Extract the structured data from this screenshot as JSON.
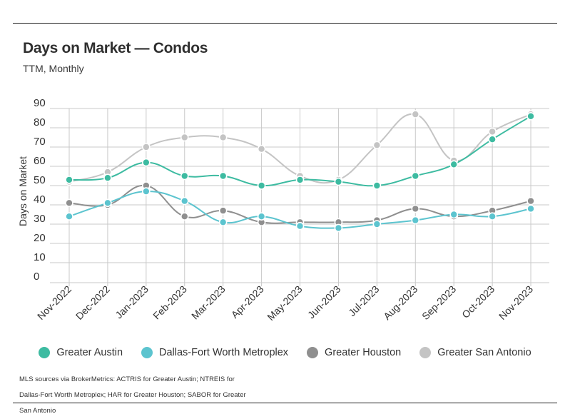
{
  "title": "Days on Market — Condos",
  "subtitle": "TTM, Monthly",
  "footnote": "MLS sources via BrokerMetrics: ACTRIS for Greater Austin; NTREIS for Dallas-Fort Worth Metroplex; HAR for Greater Houston; SABOR for Greater San Antonio",
  "chart_data": {
    "type": "line",
    "ylabel": "Days on Market",
    "xlabel": "",
    "ylim": [
      0,
      90
    ],
    "yticks": [
      0,
      10,
      20,
      30,
      40,
      50,
      60,
      70,
      80,
      90
    ],
    "grid": true,
    "legend_position": "bottom",
    "categories": [
      "Nov-2022",
      "Dec-2022",
      "Jan-2023",
      "Feb-2023",
      "Mar-2023",
      "Apr-2023",
      "May-2023",
      "Jun-2023",
      "Jul-2023",
      "Aug-2023",
      "Sep-2023",
      "Oct-2023",
      "Nov-2023"
    ],
    "series": [
      {
        "name": "Greater Austin",
        "color": "#3dbba1",
        "values": [
          53,
          54,
          62,
          55,
          55,
          50,
          53,
          52,
          50,
          55,
          61,
          74,
          86
        ]
      },
      {
        "name": "Dallas-Fort Worth Metroplex",
        "color": "#5cc4cf",
        "values": [
          34,
          41,
          47,
          42,
          31,
          34,
          29,
          28,
          30,
          32,
          35,
          34,
          38
        ]
      },
      {
        "name": "Greater Houston",
        "color": "#8f8f8f",
        "values": [
          41,
          40,
          50,
          34,
          37,
          31,
          31,
          31,
          32,
          38,
          34,
          37,
          42
        ]
      },
      {
        "name": "Greater San Antonio",
        "color": "#c4c4c4",
        "values": [
          52,
          57,
          70,
          75,
          75,
          69,
          55,
          53,
          71,
          87,
          63,
          78,
          87
        ]
      }
    ]
  }
}
